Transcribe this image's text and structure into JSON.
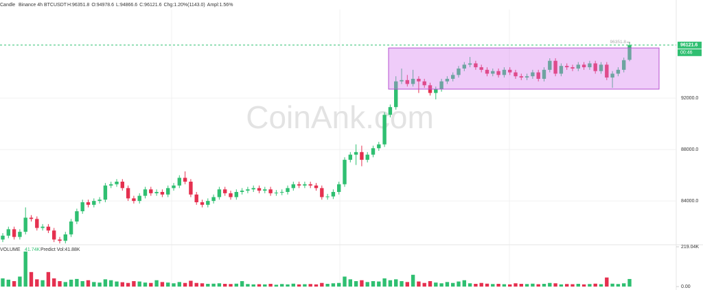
{
  "chart_data": [
    {
      "type": "candlestick",
      "header": {
        "kind": "Candle",
        "symbol": "Binance 4h BTCUSDT",
        "stats": [
          "H:96351.8",
          "O:94978.6",
          "L:94866.6",
          "C:96121.6",
          "Chg:1.20%(1143.0)",
          "Ampl:1.56%"
        ]
      },
      "watermark": "CoinAnk.com",
      "countdown": "00:46",
      "up_color": "#2fbf71",
      "down_color": "#e5304f",
      "grid": true,
      "ylim": [
        80700,
        99630
      ],
      "yticks": [
        {
          "value": 92000,
          "label": "92000.0"
        },
        {
          "value": 88000,
          "label": "88000.0"
        },
        {
          "value": 84000,
          "label": "84000.0"
        }
      ],
      "open": [
        81000,
        81300,
        81800,
        81200,
        81600,
        82700,
        82600,
        81900,
        82000,
        81700,
        81000,
        80900,
        81400,
        82400,
        83200,
        83900,
        83700,
        84000,
        84100,
        85200,
        85300,
        85500,
        85000,
        84200,
        84000,
        84400,
        84900,
        84600,
        84700,
        84500,
        85000,
        85200,
        85800,
        85500,
        84500,
        83900,
        83700,
        84000,
        84300,
        84900,
        84600,
        84300,
        84700,
        84800,
        84900,
        85000,
        84800,
        84900,
        84600,
        84650,
        84700,
        85000,
        85300,
        85200,
        85300,
        85200,
        85000,
        84300,
        84350,
        84700,
        85300,
        87200,
        87600,
        87800,
        87200,
        87600,
        88100,
        88400,
        90700,
        91300,
        93300,
        93400,
        93100,
        93500,
        93300,
        93000,
        92400,
        92700,
        93300,
        93500,
        93800,
        94300,
        94600,
        94700,
        94400,
        94200,
        93900,
        94100,
        93800,
        94200,
        94000,
        93700,
        93600,
        93700,
        94000,
        93500,
        94200,
        94900,
        93900,
        94500,
        94400,
        94300,
        94600,
        94400,
        94700,
        94100,
        94600,
        93600,
        93900,
        94200,
        94978.6
      ],
      "high": [
        81500,
        82000,
        82000,
        81800,
        83500,
        82900,
        82800,
        82200,
        82200,
        81900,
        81200,
        81600,
        82600,
        83400,
        84100,
        84100,
        84200,
        84300,
        85400,
        85500,
        85700,
        85700,
        85200,
        84400,
        84600,
        85100,
        85100,
        84900,
        84900,
        85200,
        85400,
        86000,
        86300,
        85700,
        84700,
        84100,
        84200,
        84500,
        85100,
        85100,
        84800,
        84900,
        85000,
        85100,
        85200,
        85200,
        85100,
        85100,
        84850,
        84900,
        85200,
        85500,
        85500,
        85500,
        85500,
        85400,
        85200,
        84550,
        84900,
        85500,
        87400,
        87800,
        88400,
        88300,
        87800,
        88300,
        88600,
        90900,
        91500,
        93700,
        94300,
        93800,
        94200,
        93700,
        93500,
        93200,
        92900,
        93500,
        93700,
        94000,
        94500,
        94800,
        95200,
        94900,
        94600,
        94400,
        94300,
        94300,
        94400,
        94400,
        94200,
        93900,
        93900,
        94200,
        94200,
        94400,
        95100,
        95100,
        94700,
        94700,
        94600,
        94800,
        94800,
        94900,
        94900,
        94800,
        94800,
        94100,
        94400,
        95150,
        96351.8
      ],
      "low": [
        80800,
        81100,
        81000,
        81000,
        81400,
        82400,
        81700,
        81700,
        81500,
        80800,
        80700,
        80700,
        81200,
        82200,
        83000,
        83500,
        83500,
        83800,
        83900,
        85000,
        85100,
        84800,
        84000,
        83800,
        83800,
        84200,
        84400,
        84400,
        84300,
        84300,
        84800,
        85000,
        85300,
        84300,
        83700,
        83500,
        83500,
        83800,
        84100,
        84400,
        84100,
        84100,
        84500,
        84600,
        84700,
        84600,
        84600,
        84400,
        84400,
        84450,
        84500,
        84800,
        85000,
        85000,
        85000,
        84800,
        84100,
        84100,
        84150,
        84500,
        85100,
        87000,
        86800,
        86700,
        87000,
        87400,
        87900,
        88200,
        90500,
        91100,
        93100,
        92900,
        92900,
        92400,
        92800,
        92200,
        91900,
        92500,
        93100,
        93300,
        93600,
        94100,
        94400,
        94200,
        94000,
        93700,
        93700,
        93600,
        93600,
        93800,
        93500,
        93400,
        93400,
        93500,
        93300,
        93300,
        94000,
        93700,
        93700,
        94200,
        94100,
        94100,
        94200,
        94200,
        93900,
        93900,
        93400,
        92800,
        93700,
        94000,
        94866.6
      ],
      "close": [
        81300,
        81800,
        81200,
        81600,
        82700,
        82600,
        81900,
        82000,
        81700,
        81000,
        80900,
        81400,
        82400,
        83200,
        83900,
        83700,
        84000,
        84100,
        85200,
        85300,
        85500,
        85000,
        84200,
        84000,
        84400,
        84900,
        84600,
        84700,
        84500,
        85000,
        85200,
        85800,
        85500,
        84500,
        83900,
        83700,
        84000,
        84300,
        84900,
        84600,
        84300,
        84700,
        84800,
        84900,
        85000,
        84800,
        84900,
        84600,
        84650,
        84700,
        85000,
        85300,
        85200,
        85300,
        85200,
        85000,
        84300,
        84350,
        84700,
        85300,
        87200,
        87600,
        87800,
        87200,
        87600,
        88100,
        88400,
        90700,
        91300,
        93300,
        93400,
        93100,
        93500,
        93300,
        93000,
        92400,
        92700,
        93300,
        93500,
        93800,
        94300,
        94600,
        94700,
        94400,
        94200,
        93900,
        94100,
        93800,
        94200,
        94000,
        93700,
        93600,
        93700,
        94000,
        93500,
        94200,
        94900,
        93900,
        94500,
        94400,
        94300,
        94600,
        94400,
        94700,
        94100,
        94600,
        93600,
        93900,
        94200,
        94950,
        96121.6
      ]
    },
    {
      "type": "bar",
      "title": "VOLUME",
      "last_value_label": "41.74K",
      "predict_label": "Predict Vol:41.88K",
      "ylim": [
        0,
        219040
      ],
      "yticks": [
        {
          "value": 219040,
          "label": "219.04K"
        },
        {
          "value": 0,
          "label": "0.00"
        }
      ],
      "values": [
        45000,
        38000,
        30000,
        55000,
        193000,
        80000,
        40000,
        35000,
        80000,
        45000,
        30000,
        25000,
        38000,
        42000,
        30000,
        35000,
        25000,
        22000,
        40000,
        35000,
        28000,
        24000,
        20000,
        30000,
        28000,
        22000,
        20000,
        35000,
        25000,
        22000,
        18000,
        25000,
        20000,
        32000,
        20000,
        18000,
        15000,
        16000,
        18000,
        15000,
        14000,
        16000,
        30000,
        14000,
        12000,
        13000,
        12000,
        15000,
        10000,
        14000,
        12000,
        16000,
        12000,
        13000,
        14000,
        12000,
        20000,
        15000,
        18000,
        20000,
        55000,
        40000,
        30000,
        35000,
        25000,
        30000,
        28000,
        45000,
        35000,
        40000,
        30000,
        25000,
        65000,
        28000,
        20000,
        30000,
        22000,
        18000,
        25000,
        20000,
        28000,
        35000,
        18000,
        15000,
        20000,
        16000,
        14000,
        15000,
        13000,
        12000,
        18000,
        15000,
        14000,
        16000,
        13000,
        15000,
        20000,
        18000,
        12000,
        14000,
        13000,
        15000,
        12000,
        14000,
        16000,
        13000,
        50000,
        16000,
        14000,
        18000,
        41740
      ]
    }
  ]
}
